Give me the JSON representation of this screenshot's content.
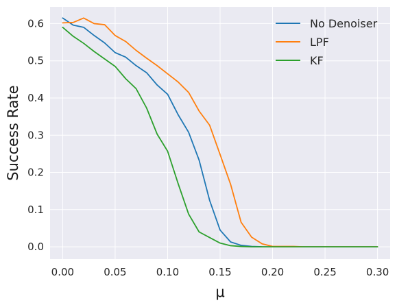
{
  "chart_data": {
    "type": "line",
    "title": "",
    "xlabel": "μ",
    "ylabel": "Success Rate",
    "xlim": [
      -0.012,
      0.312
    ],
    "ylim": [
      -0.033,
      0.645
    ],
    "xticks": [
      0.0,
      0.05,
      0.1,
      0.15,
      0.2,
      0.25,
      0.3
    ],
    "xtick_labels": [
      "0.00",
      "0.05",
      "0.10",
      "0.15",
      "0.20",
      "0.25",
      "0.30"
    ],
    "yticks": [
      0.0,
      0.1,
      0.2,
      0.3,
      0.4,
      0.5,
      0.6
    ],
    "ytick_labels": [
      "0.0",
      "0.1",
      "0.2",
      "0.3",
      "0.4",
      "0.5",
      "0.6"
    ],
    "grid": true,
    "background": "#eaeaf2",
    "legend_position": "top-right",
    "x": [
      0.0,
      0.01,
      0.02,
      0.03,
      0.04,
      0.05,
      0.06,
      0.07,
      0.08,
      0.09,
      0.1,
      0.11,
      0.12,
      0.13,
      0.14,
      0.15,
      0.16,
      0.17,
      0.18,
      0.19,
      0.2,
      0.21,
      0.22,
      0.23,
      0.24,
      0.25,
      0.26,
      0.27,
      0.28,
      0.29,
      0.3
    ],
    "series": [
      {
        "name": "No Denoiser",
        "color": "#1f77b4",
        "values": [
          0.615,
          0.596,
          0.59,
          0.568,
          0.548,
          0.522,
          0.51,
          0.487,
          0.468,
          0.435,
          0.41,
          0.355,
          0.308,
          0.233,
          0.125,
          0.045,
          0.013,
          0.004,
          0.001,
          0.0,
          0.0,
          0.0,
          0.0,
          0.0,
          0.0,
          0.0,
          0.0,
          0.0,
          0.0,
          0.0,
          0.0
        ]
      },
      {
        "name": "LPF",
        "color": "#ff7f0e",
        "values": [
          0.602,
          0.603,
          0.615,
          0.6,
          0.597,
          0.568,
          0.552,
          0.528,
          0.507,
          0.487,
          0.465,
          0.443,
          0.415,
          0.365,
          0.327,
          0.248,
          0.168,
          0.066,
          0.026,
          0.008,
          0.001,
          0.001,
          0.001,
          0.0,
          0.0,
          0.0,
          0.0,
          0.0,
          0.0,
          0.0,
          0.0
        ]
      },
      {
        "name": "KF",
        "color": "#2ca02c",
        "values": [
          0.59,
          0.566,
          0.547,
          0.525,
          0.505,
          0.485,
          0.452,
          0.425,
          0.373,
          0.303,
          0.257,
          0.17,
          0.088,
          0.04,
          0.025,
          0.01,
          0.003,
          0.001,
          0.0,
          0.0,
          0.0,
          0.0,
          0.0,
          0.0,
          0.0,
          0.0,
          0.0,
          0.0,
          0.0,
          0.0,
          0.0
        ]
      }
    ]
  }
}
